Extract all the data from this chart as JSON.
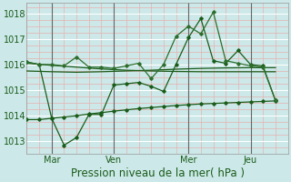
{
  "background_color": "#cce8e8",
  "plot_bg_color": "#cce8e8",
  "grid_major_color": "#ffffff",
  "grid_minor_color": "#e8b0b0",
  "line_color_dark": "#1a5c1a",
  "line_color_mid": "#2d6e2d",
  "ylim": [
    1012.5,
    1018.4
  ],
  "xlim": [
    0,
    10.5
  ],
  "yticks": [
    1013,
    1014,
    1015,
    1016,
    1017,
    1018
  ],
  "xlabel": "Pression niveau de la mer( hPa )",
  "xlabel_fontsize": 8.5,
  "tick_fontsize": 7,
  "tick_color": "#1a5c1a",
  "xtick_labels": [
    "Mar",
    "Ven",
    "Mer",
    "Jeu"
  ],
  "xtick_positions": [
    1.0,
    3.5,
    6.5,
    9.0
  ],
  "vline_positions": [
    1.0,
    3.5,
    6.5,
    9.0
  ],
  "s1_x": [
    0.0,
    0.5,
    1.0,
    1.5,
    2.0,
    2.5,
    3.0,
    3.5,
    4.0,
    4.5,
    5.0,
    5.5,
    6.0,
    6.5,
    7.0,
    7.5,
    8.0,
    8.5,
    9.0,
    9.5,
    10.0
  ],
  "s1_y": [
    1016.1,
    1016.0,
    1013.9,
    1012.85,
    1013.15,
    1014.05,
    1014.05,
    1015.2,
    1015.25,
    1015.3,
    1015.15,
    1014.95,
    1016.0,
    1017.05,
    1017.8,
    1016.15,
    1016.05,
    1016.55,
    1016.0,
    1015.95,
    1014.6
  ],
  "s2_x": [
    0.0,
    1.0,
    2.0,
    3.0,
    4.0,
    5.0,
    6.0,
    7.0,
    8.0,
    9.0,
    10.0
  ],
  "s2_y": [
    1015.75,
    1015.72,
    1015.7,
    1015.72,
    1015.75,
    1015.78,
    1015.82,
    1015.85,
    1015.87,
    1015.88,
    1015.88
  ],
  "s3_x": [
    0.0,
    1.0,
    2.0,
    3.0,
    4.0,
    5.0,
    6.0,
    7.0,
    8.0,
    9.0,
    10.0
  ],
  "s3_y": [
    1016.05,
    1015.97,
    1015.9,
    1015.83,
    1015.78,
    1015.75,
    1015.73,
    1015.72,
    1015.72,
    1015.72,
    1015.72
  ],
  "s4_x": [
    0.0,
    0.5,
    1.0,
    1.5,
    2.0,
    2.5,
    3.0,
    3.5,
    4.0,
    4.5,
    5.0,
    5.5,
    6.0,
    6.5,
    7.0,
    7.5,
    8.0,
    8.5,
    9.0,
    9.5,
    10.0
  ],
  "s4_y": [
    1016.1,
    1016.0,
    1016.0,
    1015.95,
    1016.3,
    1015.9,
    1015.9,
    1015.85,
    1015.95,
    1016.05,
    1015.45,
    1016.0,
    1017.1,
    1017.5,
    1017.2,
    1018.05,
    1016.15,
    1016.05,
    1015.95,
    1015.9,
    1014.6
  ],
  "s5_x": [
    0.0,
    0.5,
    1.0,
    1.5,
    2.0,
    2.5,
    3.0,
    3.5,
    4.0,
    4.5,
    5.0,
    5.5,
    6.0,
    6.5,
    7.0,
    7.5,
    8.0,
    8.5,
    9.0,
    9.5,
    10.0
  ],
  "s5_y": [
    1013.85,
    1013.85,
    1013.9,
    1013.95,
    1014.0,
    1014.07,
    1014.12,
    1014.18,
    1014.23,
    1014.28,
    1014.32,
    1014.36,
    1014.4,
    1014.43,
    1014.46,
    1014.48,
    1014.5,
    1014.52,
    1014.54,
    1014.56,
    1014.58
  ]
}
